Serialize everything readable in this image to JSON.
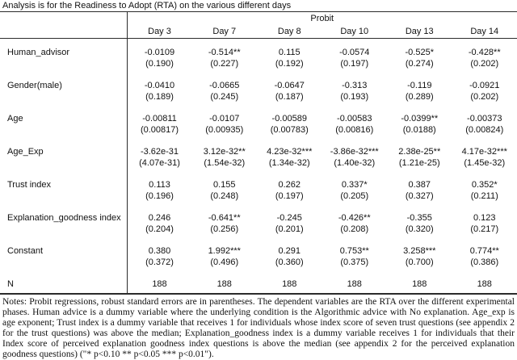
{
  "title": "Analysis is for the Readiness to Adopt (RTA) on the various different days",
  "table": {
    "group_header": "Probit",
    "columns": [
      "Day 3",
      "Day 7",
      "Day 8",
      "Day 10",
      "Day 13",
      "Day 14"
    ],
    "rows": [
      {
        "label": "Human_advisor",
        "coefs": [
          "-0.0109",
          "-0.514**",
          "0.115",
          "-0.0574",
          "-0.525*",
          "-0.428**"
        ],
        "ses": [
          "(0.190)",
          "(0.227)",
          "(0.192)",
          "(0.197)",
          "(0.274)",
          "(0.202)"
        ]
      },
      {
        "label": "Gender(male)",
        "coefs": [
          "-0.0410",
          "-0.0665",
          "-0.0647",
          "-0.313",
          "-0.119",
          "-0.0921"
        ],
        "ses": [
          "(0.189)",
          "(0.245)",
          "(0.187)",
          "(0.193)",
          "(0.289)",
          "(0.202)"
        ]
      },
      {
        "label": "Age",
        "coefs": [
          "-0.00811",
          "-0.0107",
          "-0.00589",
          "-0.00583",
          "-0.0399**",
          "-0.00373"
        ],
        "ses": [
          "(0.00817)",
          "(0.00935)",
          "(0.00783)",
          "(0.00816)",
          "(0.0188)",
          "(0.00824)"
        ]
      },
      {
        "label": "Age_Exp",
        "coefs": [
          "-3.62e-31",
          "3.12e-32**",
          "4.23e-32***",
          "-3.86e-32***",
          "2.38e-25**",
          "4.17e-32***"
        ],
        "ses": [
          "(4.07e-31)",
          "(1.54e-32)",
          "(1.34e-32)",
          "(1.40e-32)",
          "(1.21e-25)",
          "(1.45e-32)"
        ]
      },
      {
        "label": "Trust index",
        "coefs": [
          "0.113",
          "0.155",
          "0.262",
          "0.337*",
          "0.387",
          "0.352*"
        ],
        "ses": [
          "(0.196)",
          "(0.248)",
          "(0.197)",
          "(0.205)",
          "(0.327)",
          "(0.211)"
        ]
      },
      {
        "label": "Explanation_goodness index",
        "coefs": [
          "0.246",
          "-0.641**",
          "-0.245",
          "-0.426**",
          "-0.355",
          "0.123"
        ],
        "ses": [
          "(0.204)",
          "(0.256)",
          "(0.201)",
          "(0.208)",
          "(0.320)",
          "(0.217)"
        ]
      },
      {
        "label": "Constant",
        "coefs": [
          "0.380",
          "1.992***",
          "0.291",
          "0.753**",
          "3.258***",
          "0.774**"
        ],
        "ses": [
          "(0.372)",
          "(0.496)",
          "(0.360)",
          "(0.375)",
          "(0.700)",
          "(0.386)"
        ]
      }
    ],
    "n_row": {
      "label": "N",
      "values": [
        "188",
        "188",
        "188",
        "188",
        "188",
        "188"
      ]
    }
  },
  "notes": "Notes: Probit regressions, robust standard errors are in parentheses. The dependent variables are the RTA over the different experimental phases. Human advice is a dummy variable where the underlying condition is the Algorithmic advice with No explanation. Age_exp is age exponent; Trust index is a dummy variable that receives 1 for individuals whose index score of seven trust questions (see appendix 2 for the trust questions) was above the median; Explanation_goodness index is a dummy variable receives 1 for individuals that their Index score of perceived explanation goodness index questions is above the median (see appendix 2 for the perceived explanation goodness questions) (\"* p<0.10 ** p<0.05 *** p<0.01\")."
}
